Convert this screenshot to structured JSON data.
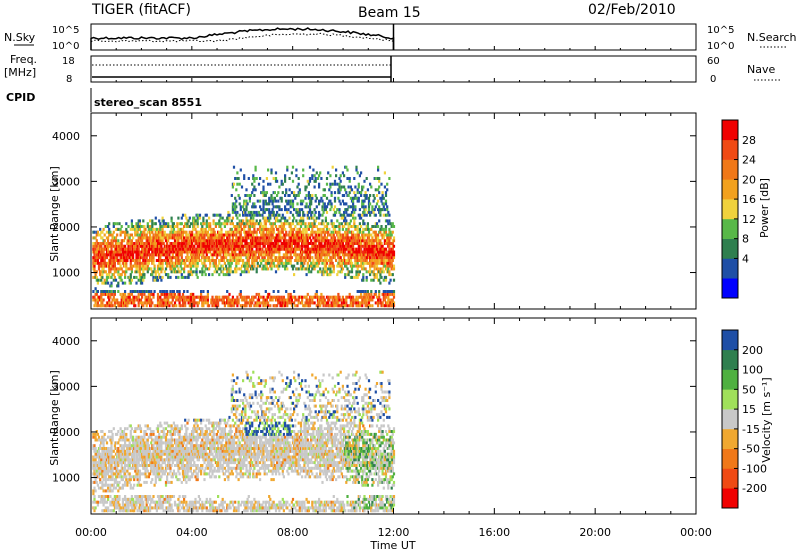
{
  "header": {
    "station": "TIGER (fitACF)",
    "beam": "Beam 15",
    "date": "02/Feb/2010"
  },
  "panels": {
    "nsky": {
      "label": "N.Sky",
      "left_ticks": [
        "10^5",
        "10^0"
      ],
      "right_ticks": [
        "10^5",
        "10^0"
      ],
      "right_label": "N.Search"
    },
    "freq": {
      "label": "Freq.",
      "unit": "[MHz]",
      "left_ticks": [
        "18",
        "8"
      ],
      "right_ticks": [
        "60",
        "0"
      ],
      "right_label": "Nave"
    },
    "cpid": {
      "label": "CPID",
      "text": "stereo_scan 8551"
    }
  },
  "colors": {
    "power": [
      "#0000ff",
      "#1f4fa6",
      "#2f7f4f",
      "#58b848",
      "#f0d23c",
      "#f2a11e",
      "#f07818",
      "#f04a14",
      "#f00000"
    ],
    "velocity": [
      "#f00000",
      "#f04a14",
      "#f07818",
      "#f0a830",
      "#c8c8c8",
      "#a0e05a",
      "#4fb040",
      "#2f7f4f",
      "#1f4fa6"
    ]
  },
  "chart_data": [
    {
      "type": "heatmap",
      "ylabel": "Slant Range [km]",
      "xlabel": "Time UT",
      "xlim": [
        0,
        24
      ],
      "ylim": [
        200,
        4500
      ],
      "yticks": [
        "4000",
        "3000",
        "2000",
        "1000"
      ],
      "xticks": [
        "00:00",
        "04:00",
        "08:00",
        "12:00",
        "16:00",
        "20:00",
        "00:00"
      ],
      "colorbar": {
        "label": "Power [dB]",
        "ticks": [
          "28",
          "24",
          "20",
          "16",
          "12",
          "8",
          "4"
        ]
      },
      "data_end_hour": 12
    },
    {
      "type": "heatmap",
      "ylabel": "Slant Range [km]",
      "xlabel": "Time UT",
      "xlim": [
        0,
        24
      ],
      "ylim": [
        200,
        4500
      ],
      "yticks": [
        "4000",
        "3000",
        "2000",
        "1000"
      ],
      "xticks": [
        "00:00",
        "04:00",
        "08:00",
        "12:00",
        "16:00",
        "20:00",
        "00:00"
      ],
      "colorbar": {
        "label": "Velocity [m s⁻¹]",
        "ticks": [
          "200",
          "100",
          "50",
          "15",
          "-15",
          "-50",
          "-100",
          "-200"
        ]
      },
      "data_end_hour": 12
    }
  ]
}
